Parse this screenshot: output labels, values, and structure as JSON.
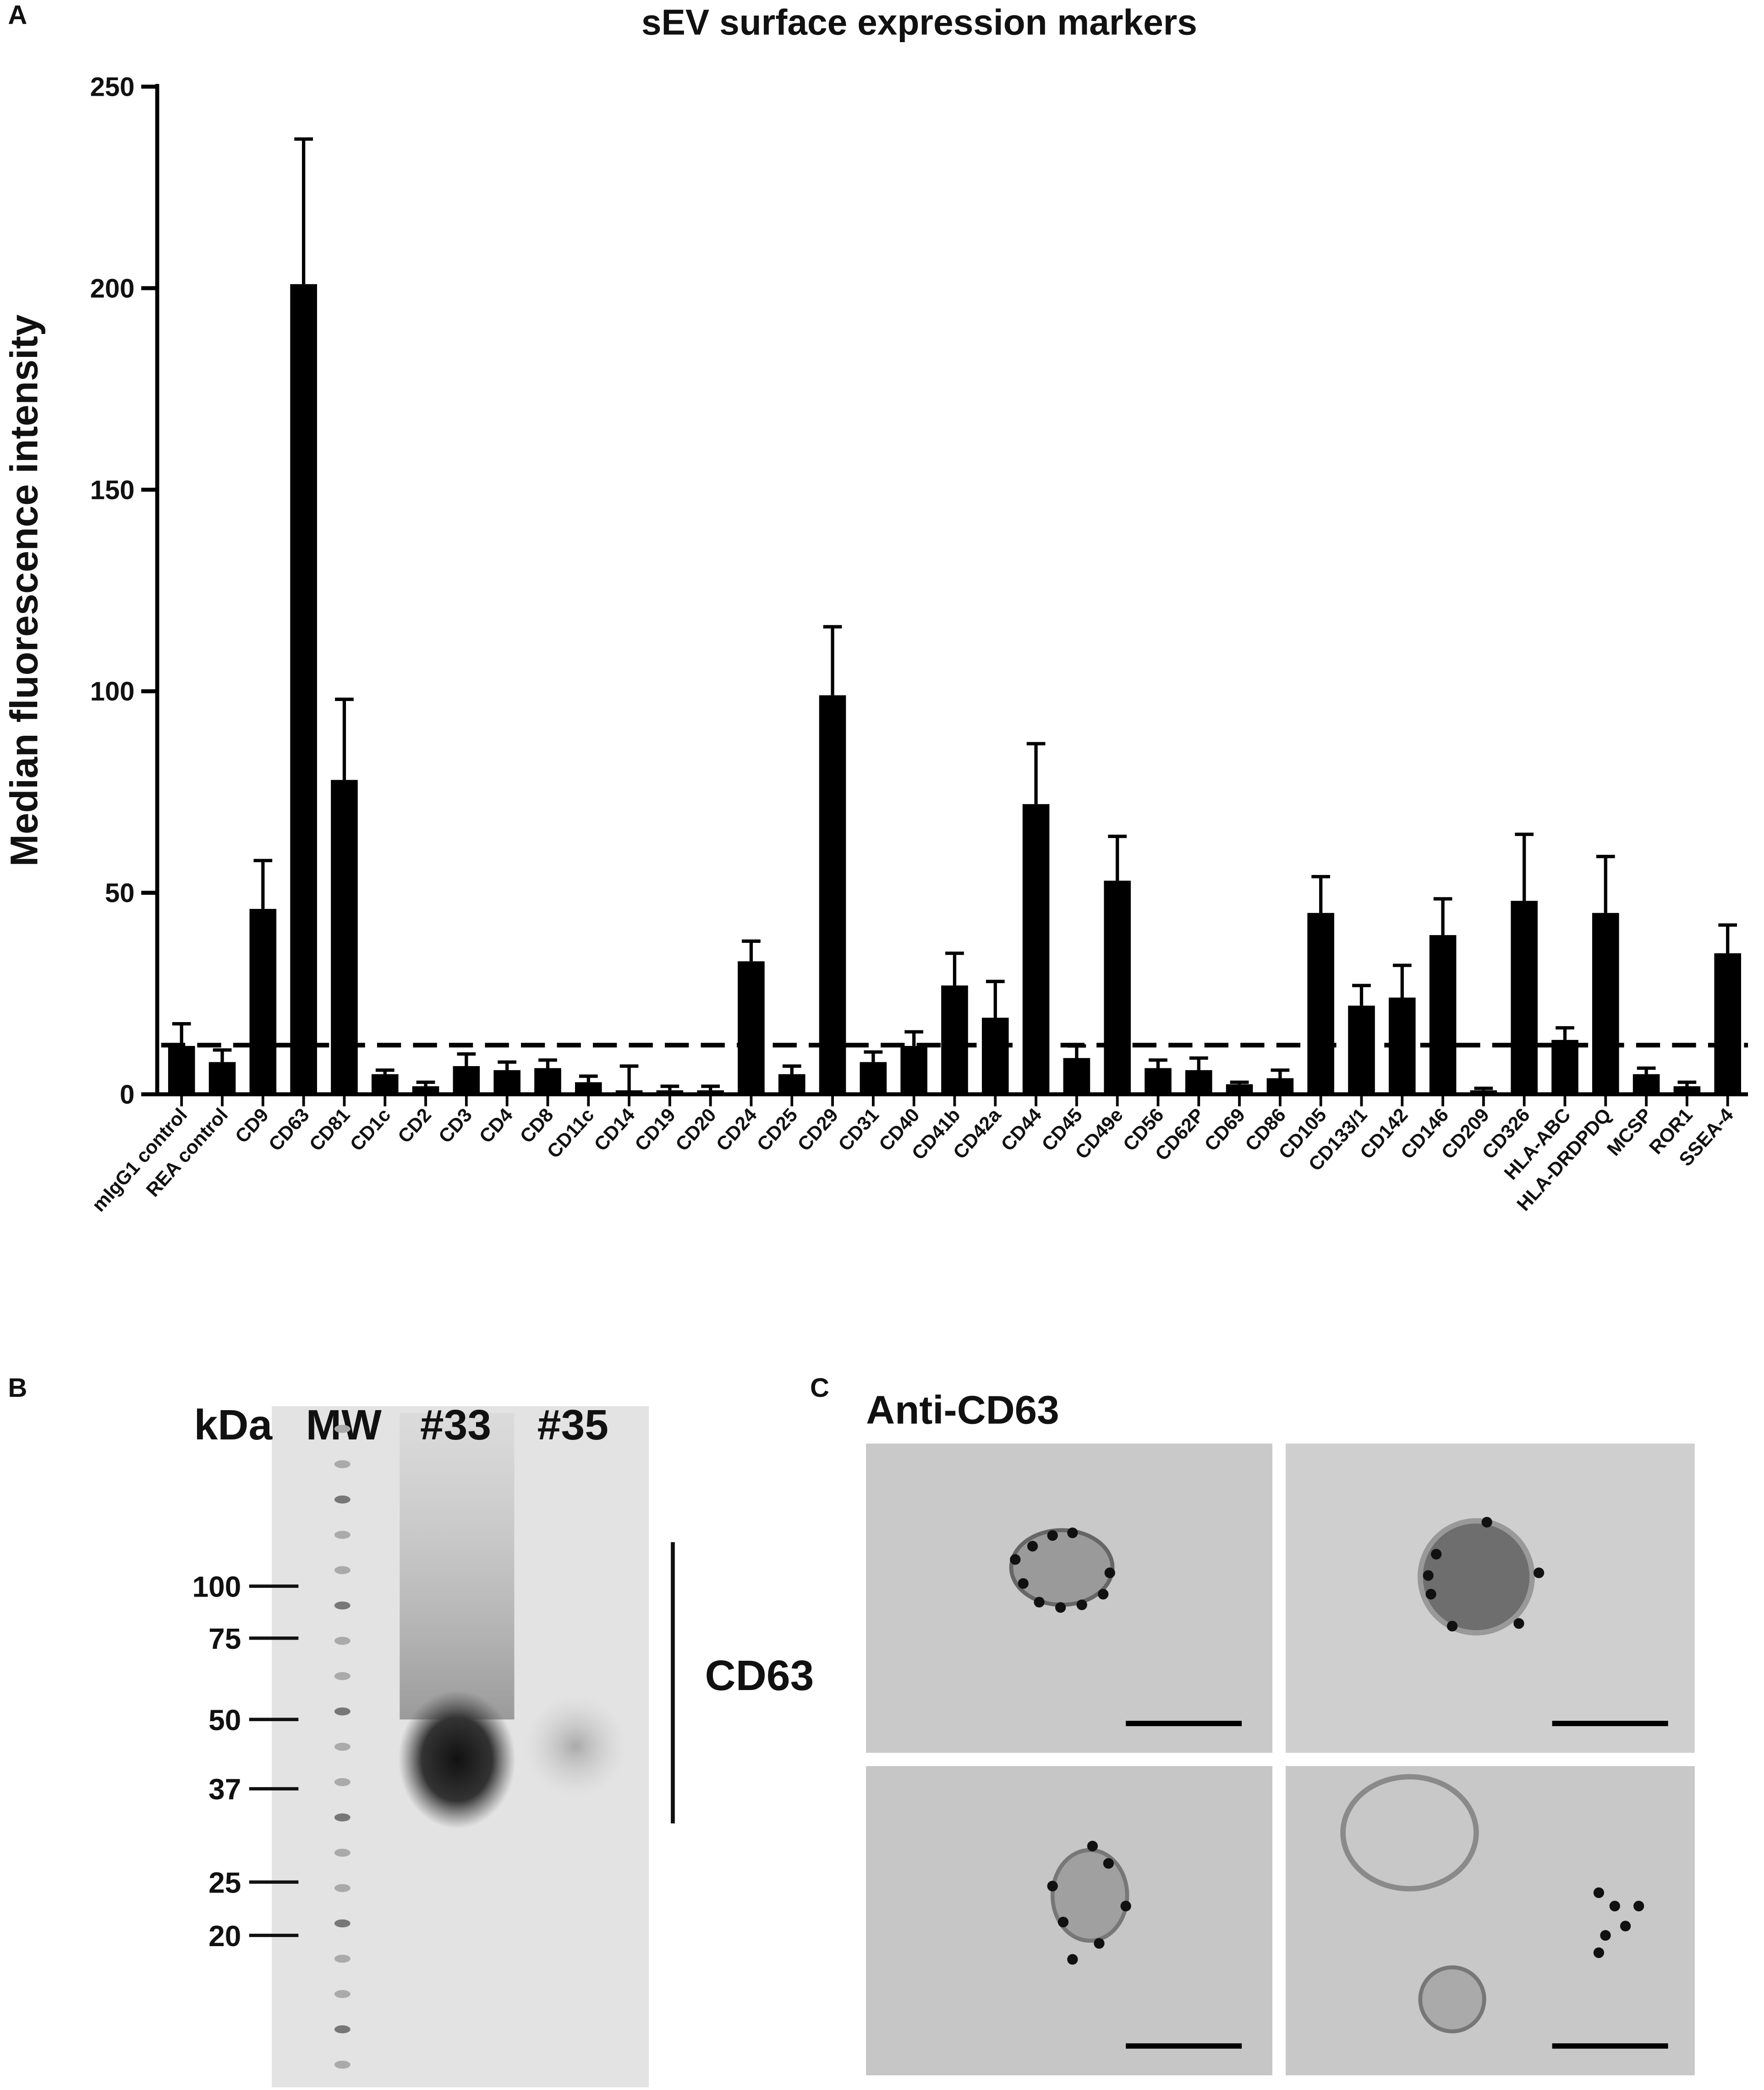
{
  "chart_data": {
    "type": "bar",
    "panel_label": "A",
    "title": "sEV surface expression markers",
    "y_label": "Median fluorescence intensity",
    "categories": [
      "mIgG1 control",
      "REA control",
      "CD9",
      "CD63",
      "CD81",
      "CD1c",
      "CD2",
      "CD3",
      "CD4",
      "CD8",
      "CD11c",
      "CD14",
      "CD19",
      "CD20",
      "CD24",
      "CD25",
      "CD29",
      "CD31",
      "CD40",
      "CD41b",
      "CD42a",
      "CD44",
      "CD45",
      "CD49e",
      "CD56",
      "CD62P",
      "CD69",
      "CD86",
      "CD105",
      "CD133/1",
      "CD142",
      "CD146",
      "CD209",
      "CD326",
      "HLA-ABC",
      "HLA-DRDPDQ",
      "MCSP",
      "ROR1",
      "SSEA-4"
    ],
    "values": [
      12,
      8,
      46,
      201,
      78,
      5,
      2,
      7,
      6,
      6.5,
      3,
      1,
      1,
      1,
      33,
      5,
      99,
      8,
      12,
      27,
      19,
      72,
      9,
      53,
      6.5,
      6,
      2.5,
      4,
      45,
      22,
      24,
      39.5,
      1,
      48,
      13.5,
      45,
      5,
      2,
      35
    ],
    "errors": [
      5.5,
      3,
      12,
      36,
      20,
      1,
      1,
      3,
      2,
      2,
      1.5,
      6,
      1,
      1,
      5,
      2,
      17,
      2.5,
      3.5,
      8,
      9,
      15,
      3,
      11,
      2,
      3,
      0.5,
      2,
      9,
      5,
      8,
      9,
      0.5,
      16.5,
      3,
      14,
      1.5,
      1,
      7
    ],
    "color": "#000000",
    "threshold": 12.2,
    "ylim": [
      0,
      250
    ],
    "yticks": [
      0,
      50,
      100,
      150,
      200,
      250
    ],
    "grid": false
  },
  "blot": {
    "panel_label": "B",
    "lanes": [
      "kDa",
      "MW",
      "#33",
      "#35"
    ],
    "markers": [
      100,
      75,
      50,
      37,
      25,
      20
    ],
    "band_label": "CD63"
  },
  "micrographs": {
    "panel_label": "C",
    "title": "Anti-CD63"
  }
}
